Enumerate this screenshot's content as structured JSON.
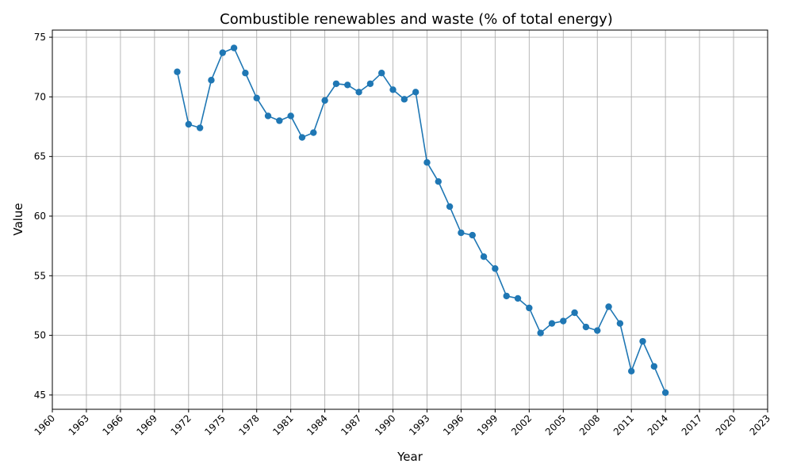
{
  "chart_data": {
    "type": "line",
    "title": "Combustible renewables and waste (% of total energy)",
    "xlabel": "Year",
    "ylabel": "Value",
    "xlim": [
      1960,
      2023
    ],
    "ylim": [
      43.8,
      75.6
    ],
    "grid": true,
    "series_color": "#1f77b4",
    "x_ticks": [
      1960,
      1963,
      1966,
      1969,
      1972,
      1975,
      1978,
      1981,
      1984,
      1987,
      1990,
      1993,
      1996,
      1999,
      2002,
      2005,
      2008,
      2011,
      2014,
      2017,
      2020,
      2023
    ],
    "y_ticks": [
      45,
      50,
      55,
      60,
      65,
      70,
      75
    ],
    "series": [
      {
        "x": [
          1971,
          1972,
          1973,
          1974,
          1975,
          1976,
          1977,
          1978,
          1979,
          1980,
          1981,
          1982,
          1983,
          1984,
          1985,
          1986,
          1987,
          1988,
          1989,
          1990,
          1991,
          1992,
          1993,
          1994,
          1995,
          1996,
          1997,
          1998,
          1999,
          2000,
          2001,
          2002,
          2003,
          2004,
          2005,
          2006,
          2007,
          2008,
          2009,
          2010,
          2011,
          2012,
          2013,
          2014
        ],
        "values": [
          72.1,
          67.7,
          67.4,
          71.4,
          73.7,
          74.1,
          72.0,
          69.9,
          68.4,
          68.0,
          68.4,
          66.6,
          67.0,
          69.7,
          71.1,
          71.0,
          70.4,
          71.1,
          72.0,
          70.6,
          69.8,
          70.4,
          64.5,
          62.9,
          60.8,
          58.6,
          58.4,
          56.6,
          55.6,
          53.3,
          53.1,
          52.3,
          50.2,
          51.0,
          51.2,
          51.9,
          50.7,
          50.4,
          52.4,
          51.0,
          47.0,
          49.5,
          47.4,
          45.2
        ]
      }
    ]
  }
}
